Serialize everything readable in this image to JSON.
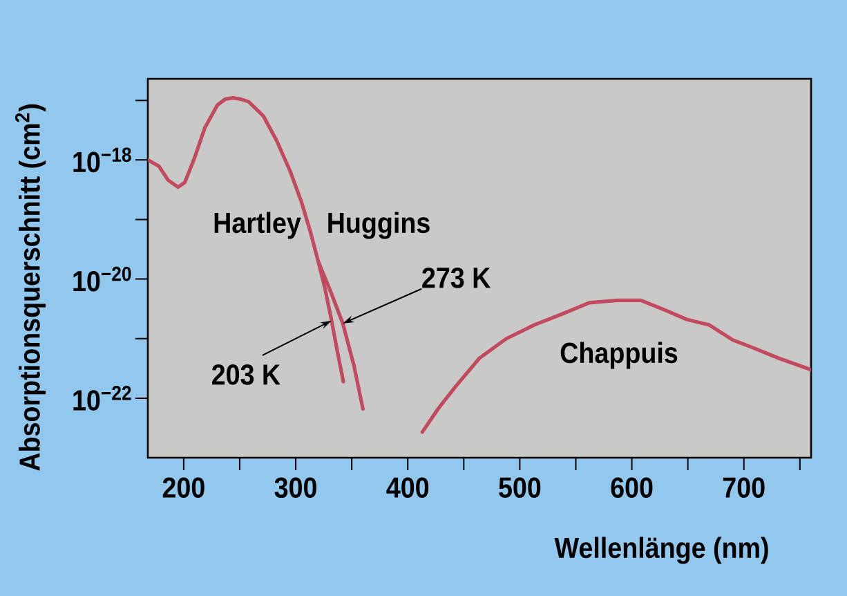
{
  "chart_data": {
    "type": "line",
    "xlabel": "Wellenlänge (nm)",
    "ylabel": "Absorptionsquerschnitt (cm$^{2}$)",
    "log": "y",
    "line_style": "solid",
    "marker": "none",
    "xlim": [
      168,
      760
    ],
    "ylim": [
      1e-23,
      2.3e-17
    ],
    "xticks": [
      200,
      {
        "value": 250,
        "label": null
      },
      300,
      {
        "value": 350,
        "label": null
      },
      400,
      {
        "value": 450,
        "label": null
      },
      500,
      {
        "value": 550,
        "label": null
      },
      600,
      {
        "value": 650,
        "label": null
      },
      700,
      {
        "value": 750,
        "label": null
      }
    ],
    "yticks": [
      {
        "value": 1e-22,
        "label": "10$^{−22}$"
      },
      {
        "value": 1e-21,
        "label": null
      },
      {
        "value": 1e-20,
        "label": "10$^{−20}$"
      },
      {
        "value": 1e-19,
        "label": null
      },
      {
        "value": 1e-18,
        "label": "10$^{−18}$"
      },
      {
        "value": 1e-17,
        "label": null
      }
    ],
    "series": [
      {
        "color": "#c24a60",
        "x": [
          168,
          178,
          186,
          195,
          201,
          209,
          219,
          230,
          237,
          244,
          251,
          258,
          271,
          283,
          295,
          305,
          313,
          320,
          331,
          342,
          352,
          360
        ],
        "values": [
          1e-18,
          7.8e-19,
          4.6e-19,
          3.5e-19,
          4.2e-19,
          1e-18,
          3.5e-18,
          8.3e-18,
          1.05e-17,
          1.1e-17,
          1.05e-17,
          9.5e-18,
          5.5e-18,
          2.1e-18,
          6.5e-19,
          2e-19,
          6.3e-20,
          2e-20,
          6.3e-21,
          1.8e-21,
          3.5e-22,
          6.6e-23
        ]
      },
      {
        "color": "#c24a60",
        "x": [
          320,
          326,
          332,
          337,
          342.5
        ],
        "values": [
          2e-20,
          7.1e-21,
          2e-21,
          6.3e-22,
          1.9e-22
        ]
      },
      {
        "color": "#c24a60",
        "x": [
          413,
          427,
          443,
          464,
          488,
          513,
          538,
          562,
          587,
          608,
          628,
          649,
          669,
          690,
          710,
          731,
          760
        ],
        "values": [
          2.7e-23,
          6.6e-23,
          1.6e-22,
          4.7e-22,
          1e-21,
          1.7e-21,
          2.6e-21,
          4e-21,
          4.4e-21,
          4.4e-21,
          3.1e-21,
          2.1e-21,
          1.7e-21,
          9.5e-22,
          6.8e-22,
          4.7e-22,
          3e-22
        ]
      }
    ],
    "annotations": [
      "Hartley",
      "Huggins",
      {
        "text": "273 K",
        "x": 342,
        "y": 1.8e-21
      },
      {
        "text": "203 K",
        "x": 332,
        "y": 2e-21
      },
      "Chappuis"
    ]
  }
}
